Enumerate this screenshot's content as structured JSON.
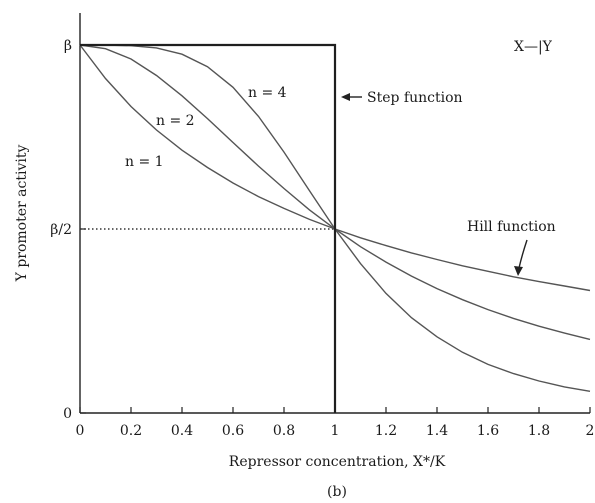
{
  "chart_data": {
    "type": "line",
    "xlabel": "Repressor concentration, X*/K",
    "ylabel": "Y promoter activity",
    "xlim": [
      0,
      2
    ],
    "ylim": [
      0,
      1.08
    ],
    "x_ticks": [
      {
        "value": 0,
        "label": "0"
      },
      {
        "value": 0.2,
        "label": "0.2"
      },
      {
        "value": 0.4,
        "label": "0.4"
      },
      {
        "value": 0.6,
        "label": "0.6"
      },
      {
        "value": 0.8,
        "label": "0.8"
      },
      {
        "value": 1.0,
        "label": "1"
      },
      {
        "value": 1.2,
        "label": "1.2"
      },
      {
        "value": 1.4,
        "label": "1.4"
      },
      {
        "value": 1.6,
        "label": "1.6"
      },
      {
        "value": 1.8,
        "label": "1.8"
      },
      {
        "value": 2.0,
        "label": "2"
      }
    ],
    "y_ticks": [
      {
        "value": 0,
        "label": "0"
      },
      {
        "value": 0.5,
        "label": "β/2"
      },
      {
        "value": 1.0,
        "label": "β"
      }
    ],
    "x": [
      0,
      0.1,
      0.2,
      0.3,
      0.4,
      0.5,
      0.6,
      0.7,
      0.8,
      0.9,
      1.0,
      1.1,
      1.2,
      1.3,
      1.4,
      1.5,
      1.6,
      1.7,
      1.8,
      1.9,
      2.0
    ],
    "series": [
      {
        "name": "n = 1",
        "values": [
          1.0,
          0.909,
          0.833,
          0.769,
          0.714,
          0.667,
          0.625,
          0.588,
          0.556,
          0.526,
          0.5,
          0.476,
          0.455,
          0.435,
          0.417,
          0.4,
          0.385,
          0.37,
          0.357,
          0.345,
          0.333
        ]
      },
      {
        "name": "n = 2",
        "values": [
          1.0,
          0.99,
          0.962,
          0.917,
          0.862,
          0.8,
          0.735,
          0.671,
          0.61,
          0.552,
          0.5,
          0.452,
          0.41,
          0.372,
          0.338,
          0.308,
          0.281,
          0.257,
          0.236,
          0.217,
          0.2
        ]
      },
      {
        "name": "n = 4",
        "values": [
          1.0,
          1.0,
          0.998,
          0.992,
          0.975,
          0.941,
          0.885,
          0.806,
          0.709,
          0.604,
          0.5,
          0.406,
          0.325,
          0.259,
          0.207,
          0.165,
          0.132,
          0.107,
          0.087,
          0.071,
          0.059
        ]
      }
    ],
    "step_function": {
      "x": [
        0,
        1,
        1
      ],
      "values": [
        1,
        1,
        0
      ]
    },
    "reference_line": {
      "y": 0.5,
      "x_from": 0,
      "x_to": 1
    },
    "annotations": {
      "step_function": "Step function",
      "hill_function": "Hill function",
      "diagram": "X—|Y",
      "panel": "(b)"
    }
  }
}
